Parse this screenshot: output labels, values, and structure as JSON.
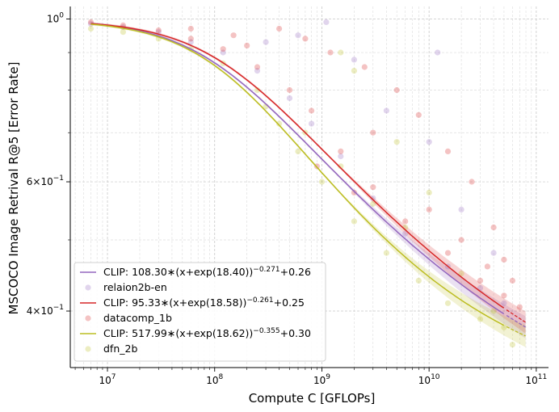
{
  "chart_data": {
    "type": "scatter",
    "xlabel": "Compute C [GFLOPs]",
    "ylabel": "MSCOCO Image Retrival R@5 [Error Rate]",
    "xscale": "log",
    "yscale": "log",
    "xlim": [
      4500000,
      130000000000
    ],
    "ylim": [
      0.335,
      1.04
    ],
    "grid": true,
    "legend_position": "bottom-left",
    "x_ticks": [
      {
        "value": 10000000,
        "label": "10^7"
      },
      {
        "value": 100000000,
        "label": "10^8"
      },
      {
        "value": 1000000000,
        "label": "10^9"
      },
      {
        "value": 10000000000,
        "label": "10^10"
      },
      {
        "value": 100000000000,
        "label": "10^11"
      }
    ],
    "y_ticks": [
      {
        "value": 1.0,
        "label": "10^0"
      },
      {
        "value": 0.6,
        "label": "6×10^-1"
      },
      {
        "value": 0.4,
        "label": "4×10^-1"
      }
    ],
    "series": [
      {
        "name": "relaion2b-en",
        "fit_label": "CLIP: 108.30∗(x+exp(18.40))^-0.271+0.26",
        "color": "#9467bd",
        "fit": {
          "a": 108.3,
          "b": 18.4,
          "alpha": 0.271,
          "c": 0.26,
          "x_end": 50000000000
        },
        "points": [
          [
            7000000.0,
            0.985
          ],
          [
            14000000.0,
            0.975
          ],
          [
            30000000.0,
            0.96
          ],
          [
            60000000.0,
            0.93
          ],
          [
            120000000.0,
            0.9
          ],
          [
            250000000.0,
            0.85
          ],
          [
            500000000.0,
            0.78
          ],
          [
            800000000.0,
            0.72
          ],
          [
            1500000000.0,
            0.65
          ],
          [
            3000000000.0,
            0.57
          ],
          [
            6000000000.0,
            0.51
          ],
          [
            15000000000.0,
            0.46
          ],
          [
            30000000000.0,
            0.43
          ],
          [
            50000000000.0,
            0.41
          ],
          [
            600000000.0,
            0.95
          ],
          [
            2000000000.0,
            0.88
          ],
          [
            4000000000.0,
            0.75
          ],
          [
            10000000000.0,
            0.68
          ],
          [
            20000000000.0,
            0.55
          ],
          [
            40000000000.0,
            0.48
          ],
          [
            12000000000.0,
            0.9
          ],
          [
            300000000.0,
            0.93
          ],
          [
            1100000000.0,
            0.99
          ]
        ]
      },
      {
        "name": "datacomp_1b",
        "fit_label": "CLIP: 95.33∗(x+exp(18.58))^-0.261+0.25",
        "color": "#d62728",
        "fit": {
          "a": 95.33,
          "b": 18.58,
          "alpha": 0.261,
          "c": 0.25,
          "x_end": 50000000000
        },
        "points": [
          [
            7000000.0,
            0.99
          ],
          [
            14000000.0,
            0.98
          ],
          [
            30000000.0,
            0.965
          ],
          [
            60000000.0,
            0.94
          ],
          [
            120000000.0,
            0.91
          ],
          [
            250000000.0,
            0.86
          ],
          [
            500000000.0,
            0.8
          ],
          [
            800000000.0,
            0.75
          ],
          [
            1500000000.0,
            0.66
          ],
          [
            3000000000.0,
            0.59
          ],
          [
            6000000000.0,
            0.53
          ],
          [
            15000000000.0,
            0.48
          ],
          [
            30000000000.0,
            0.44
          ],
          [
            50000000000.0,
            0.42
          ],
          [
            70000000000.0,
            0.405
          ],
          [
            400000000.0,
            0.97
          ],
          [
            700000000.0,
            0.94
          ],
          [
            1200000000.0,
            0.9
          ],
          [
            2500000000.0,
            0.86
          ],
          [
            5000000000.0,
            0.8
          ],
          [
            8000000000.0,
            0.74
          ],
          [
            15000000000.0,
            0.66
          ],
          [
            25000000000.0,
            0.6
          ],
          [
            40000000000.0,
            0.52
          ],
          [
            50000000000.0,
            0.47
          ],
          [
            3000000000.0,
            0.7
          ],
          [
            20000000000.0,
            0.5
          ],
          [
            60000000000.0,
            0.44
          ],
          [
            900000000.0,
            0.63
          ],
          [
            2000000000.0,
            0.58
          ],
          [
            10000000000.0,
            0.55
          ],
          [
            35000000000.0,
            0.46
          ],
          [
            60000000.0,
            0.97
          ],
          [
            150000000.0,
            0.95
          ],
          [
            200000000.0,
            0.92
          ]
        ]
      },
      {
        "name": "dfn_2b",
        "fit_label": "CLIP: 517.99∗(x+exp(18.62))^-0.355+0.30",
        "color": "#bcbd22",
        "fit": {
          "a": 517.99,
          "b": 18.62,
          "alpha": 0.355,
          "c": 0.3,
          "x_end": 50000000000
        },
        "points": [
          [
            7000000.0,
            0.97
          ],
          [
            14000000.0,
            0.96
          ],
          [
            30000000.0,
            0.94
          ],
          [
            60000000.0,
            0.91
          ],
          [
            120000000.0,
            0.87
          ],
          [
            250000000.0,
            0.8
          ],
          [
            400000000.0,
            0.72
          ],
          [
            600000000.0,
            0.66
          ],
          [
            1000000000.0,
            0.6
          ],
          [
            2000000000.0,
            0.53
          ],
          [
            4000000000.0,
            0.48
          ],
          [
            8000000000.0,
            0.44
          ],
          [
            15000000000.0,
            0.41
          ],
          [
            30000000000.0,
            0.39
          ],
          [
            50000000000.0,
            0.38
          ],
          [
            60000000000.0,
            0.36
          ],
          [
            300000000.0,
            0.76
          ],
          [
            700000000.0,
            0.7
          ],
          [
            1500000000.0,
            0.63
          ],
          [
            3000000000.0,
            0.56
          ],
          [
            6000000000.0,
            0.52
          ],
          [
            10000000000.0,
            0.58
          ],
          [
            20000000000.0,
            0.45
          ],
          [
            40000000000.0,
            0.4
          ],
          [
            2000000000.0,
            0.85
          ],
          [
            5000000000.0,
            0.68
          ],
          [
            1500000000.0,
            0.9
          ]
        ]
      }
    ]
  }
}
